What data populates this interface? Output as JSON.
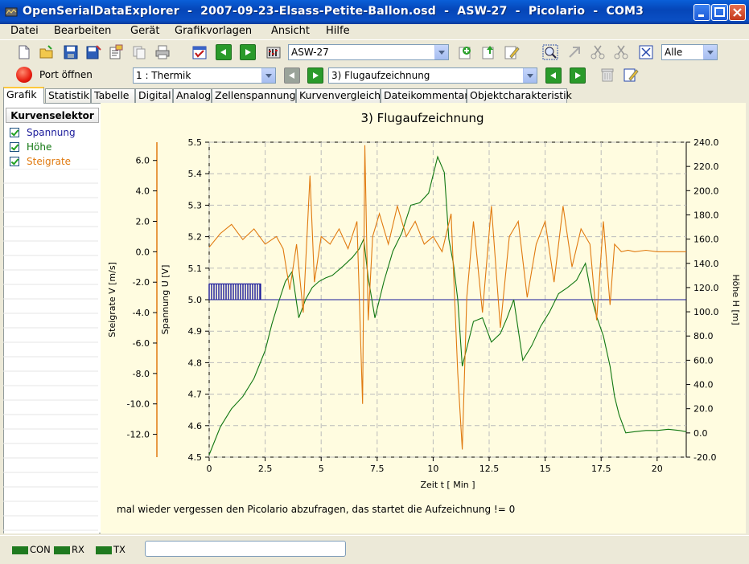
{
  "window": {
    "title": "OpenSerialDataExplorer  -  2007-09-23-Elsass-Petite-Ballon.osd  -  ASW-27  -  Picolario  -  COM3"
  },
  "menu": [
    "Datei",
    "Bearbeiten",
    "Gerät",
    "Grafikvorlagen",
    "Ansicht",
    "Hilfe"
  ],
  "toolbar": {
    "model_select": "ASW-27",
    "zoom_select": "Alle",
    "port_button": "Port öffnen",
    "channel_select": "1 : Thermik",
    "record_select": "3) Flugaufzeichnung"
  },
  "tabs": [
    "Grafik",
    "Statistik",
    "Tabelle",
    "Digital",
    "Analog",
    "Zellenspannung",
    "Kurvenvergleich",
    "Dateikommentar",
    "Objektcharakteristik"
  ],
  "active_tab": "Grafik",
  "curve_selector": {
    "header": "Kurvenselektor",
    "items": [
      {
        "label": "Spannung",
        "color": "#1a1a9a",
        "checked": true
      },
      {
        "label": "Höhe",
        "color": "#117711",
        "checked": true
      },
      {
        "label": "Steigrate",
        "color": "#e07a10",
        "checked": true
      }
    ]
  },
  "status": {
    "con": "CON",
    "rx": "RX",
    "tx": "TX"
  },
  "chart_data": {
    "type": "line",
    "title": "3) Flugaufzeichnung",
    "comment": "mal wieder vergessen den Picolario abzufragen, das startet die Aufzeichnung != 0",
    "xlabel": "Zeit  t  [ Min ]",
    "xlim": [
      0,
      21.3
    ],
    "x_ticks": [
      "0",
      "2.5",
      "5",
      "7.5",
      "10",
      "12.5",
      "15",
      "17.5",
      "20"
    ],
    "grid": true,
    "axes": {
      "steigrate": {
        "label": "Steigrate  V  [m/s]",
        "ylim": [
          -13.5,
          7.2
        ],
        "ticks": [
          "6.0",
          "4.0",
          "2.0",
          "0.0",
          "-2.0",
          "-4.0",
          "-6.0",
          "-8.0",
          "-10.0",
          "-12.0"
        ]
      },
      "spannung": {
        "label": "Spannung  U  [V]",
        "ylim": [
          4.5,
          5.5
        ],
        "ticks": [
          "5.5",
          "5.4",
          "5.3",
          "5.2",
          "5.1",
          "5.0",
          "4.9",
          "4.8",
          "4.7",
          "4.6",
          "4.5"
        ]
      },
      "hoehe": {
        "label": "Höhe  H  [m]",
        "ylim": [
          -20,
          240
        ],
        "ticks": [
          "240.0",
          "220.0",
          "200.0",
          "180.0",
          "160.0",
          "140.0",
          "120.0",
          "100.0",
          "80.0",
          "60.0",
          "40.0",
          "20.0",
          "0.0",
          "-20.0"
        ]
      }
    },
    "series": [
      {
        "name": "Spannung",
        "axis": "spannung",
        "color": "#1a1a9a",
        "x": [
          0,
          2.3,
          2.3,
          21.3
        ],
        "y": [
          5.05,
          5.05,
          5.0,
          5.0
        ]
      },
      {
        "name": "Höhe",
        "axis": "hoehe",
        "color": "#117711",
        "x": [
          0,
          0.5,
          1,
          1.5,
          2,
          2.5,
          2.8,
          3.1,
          3.4,
          3.7,
          4.0,
          4.3,
          4.6,
          4.9,
          5.2,
          5.5,
          6.0,
          6.4,
          6.7,
          6.9,
          7.1,
          7.4,
          7.8,
          8.2,
          8.6,
          9.0,
          9.4,
          9.8,
          10.2,
          10.5,
          10.7,
          10.9,
          11.1,
          11.3,
          11.5,
          11.8,
          12.2,
          12.6,
          13.0,
          13.3,
          13.6,
          14.0,
          14.4,
          14.8,
          15.2,
          15.6,
          16.0,
          16.4,
          16.8,
          17.1,
          17.3,
          17.6,
          17.9,
          18.1,
          18.3,
          18.6,
          19.0,
          19.5,
          20.0,
          20.5,
          21.0,
          21.3
        ],
        "y": [
          -18,
          5,
          20,
          30,
          45,
          68,
          90,
          108,
          125,
          133,
          95,
          110,
          120,
          125,
          128,
          130,
          138,
          145,
          152,
          160,
          128,
          95,
          125,
          150,
          165,
          188,
          190,
          198,
          228,
          215,
          160,
          140,
          110,
          55,
          70,
          92,
          95,
          75,
          82,
          95,
          110,
          60,
          72,
          88,
          100,
          115,
          120,
          126,
          140,
          110,
          96,
          80,
          55,
          30,
          15,
          0,
          1,
          2,
          2,
          3,
          2,
          1
        ]
      },
      {
        "name": "Steigrate",
        "axis": "steigrate",
        "color": "#e07a10",
        "x": [
          0,
          0.5,
          1,
          1.5,
          2,
          2.5,
          3,
          3.3,
          3.6,
          3.9,
          4.2,
          4.5,
          4.7,
          5.0,
          5.4,
          5.8,
          6.2,
          6.6,
          6.85,
          6.95,
          7.1,
          7.3,
          7.6,
          8.0,
          8.4,
          8.8,
          9.2,
          9.6,
          10.0,
          10.4,
          10.8,
          11.1,
          11.3,
          11.5,
          11.8,
          12.2,
          12.6,
          13.0,
          13.4,
          13.8,
          14.2,
          14.6,
          15.0,
          15.4,
          15.8,
          16.2,
          16.6,
          17.0,
          17.3,
          17.6,
          17.9,
          18.1,
          18.4,
          18.7,
          19.0,
          19.5,
          20.0,
          20.5,
          21.0,
          21.3
        ],
        "y": [
          0.3,
          1.2,
          1.8,
          0.8,
          1.5,
          0.5,
          1.0,
          0.2,
          -2.5,
          0.5,
          -4.0,
          5.0,
          -2.0,
          1.0,
          0.5,
          1.5,
          0.2,
          2.0,
          -10.0,
          7.0,
          -4.5,
          1.0,
          2.5,
          0.5,
          3.0,
          1.0,
          2.0,
          0.5,
          1.0,
          0.0,
          2.5,
          -8.0,
          -13.0,
          -3.0,
          2.0,
          -4.0,
          3.0,
          -5.0,
          1.0,
          2.0,
          -3.0,
          0.5,
          2.0,
          -2.0,
          3.0,
          -1.0,
          1.5,
          0.5,
          -4.5,
          2.0,
          -3.5,
          0.5,
          0.0,
          0.1,
          0.0,
          0.1,
          0.0,
          0.0,
          0.0,
          0.0
        ]
      }
    ]
  }
}
